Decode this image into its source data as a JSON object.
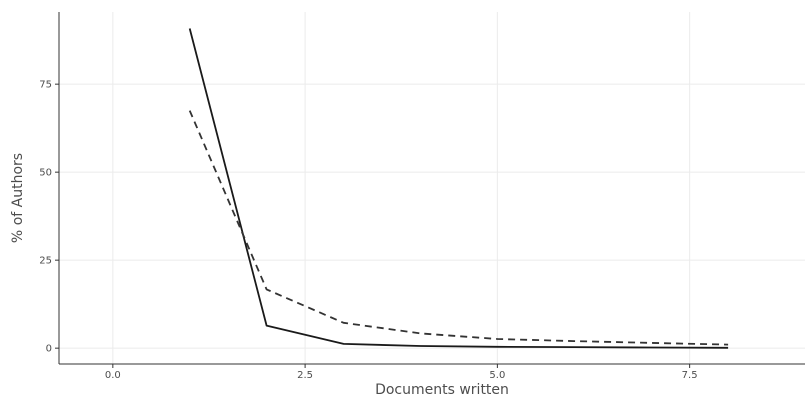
{
  "chart_data": {
    "type": "line",
    "title": "",
    "xlabel": "Documents written",
    "ylabel": "% of Authors",
    "xlim": [
      -0.7,
      9.0
    ],
    "ylim": [
      -4.5,
      95.5
    ],
    "x_ticks": [
      0.0,
      2.5,
      5.0,
      7.5
    ],
    "x_tick_labels": [
      "0.0",
      "2.5",
      "5.0",
      "7.5"
    ],
    "y_ticks": [
      0,
      25,
      50,
      75
    ],
    "y_tick_labels": [
      "0",
      "25",
      "50",
      "75"
    ],
    "grid": true,
    "legend": "none",
    "series": [
      {
        "style": "solid",
        "color": "#1a1a1a",
        "x": [
          1,
          2,
          3,
          4,
          5,
          6,
          7,
          8
        ],
        "values": [
          90.8,
          6.4,
          1.2,
          0.6,
          0.4,
          0.3,
          0.2,
          0.1
        ]
      },
      {
        "style": "dashed",
        "color": "#333333",
        "x": [
          1,
          2,
          3,
          4,
          5,
          6,
          7,
          8
        ],
        "values": [
          67.5,
          16.7,
          7.2,
          4.2,
          2.6,
          2.0,
          1.5,
          1.0
        ]
      }
    ]
  }
}
